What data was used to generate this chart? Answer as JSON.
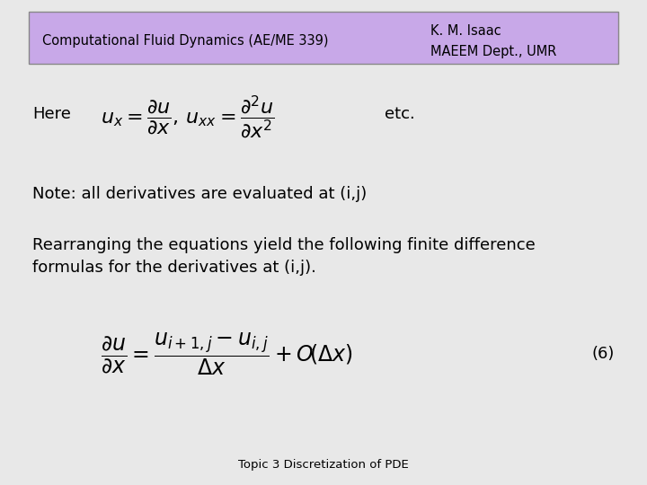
{
  "bg_color": "#e8e8e8",
  "header_bg": "#c8a8e8",
  "header_border": "#888888",
  "title_left": "Computational Fluid Dynamics (AE/ME 339)",
  "title_right_line1": "K. M. Isaac",
  "title_right_line2": "MAEEM Dept., UMR",
  "here_text": "Here",
  "etc_text": "etc.",
  "note_text": "Note: all derivatives are evaluated at (i,j)",
  "rearranging_line1": "Rearranging the equations yield the following finite difference",
  "rearranging_line2": "formulas for the derivatives at (i,j).",
  "eq_number": "(6)",
  "footer_text": "Topic 3 Discretization of PDE",
  "header_fontsize": 10.5,
  "body_fontsize": 13,
  "math_fontsize": 16,
  "small_fontsize": 9.5
}
